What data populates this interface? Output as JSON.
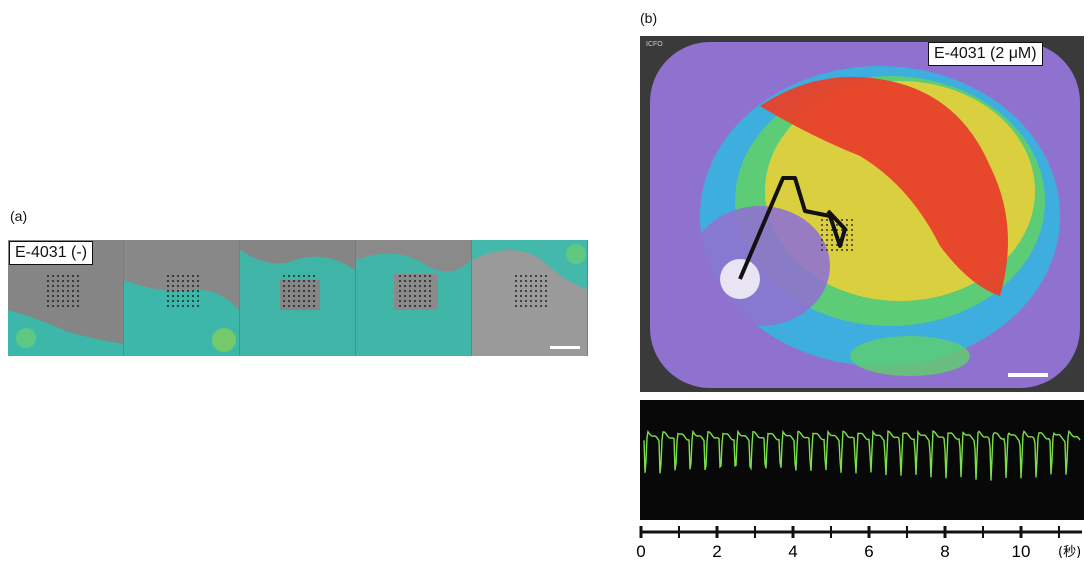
{
  "panel_a": {
    "label": "(a)",
    "condition": "E-4031 (-)",
    "frame_count": 5
  },
  "panel_b": {
    "label": "(b)",
    "condition": "E-4031 (2 μM)",
    "corner_text": "ICFO",
    "time_axis": {
      "ticks": [
        "0",
        "2",
        "4",
        "6",
        "8",
        "10"
      ],
      "unit": "(秒)"
    }
  },
  "colors": {
    "trace": "#7be04a",
    "cell_overlay": "#2fbfb0",
    "heat_background": "#8f72cf",
    "heat_hot": "#e8402a"
  }
}
